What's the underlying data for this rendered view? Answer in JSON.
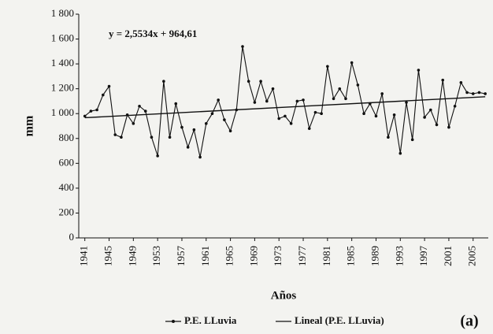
{
  "chart_data": {
    "type": "line",
    "annotation": "y = 2,5534x + 964,61",
    "x_label": "Años",
    "y_label": "mm",
    "panel_label": "(a)",
    "x": [
      1941,
      1942,
      1943,
      1944,
      1945,
      1946,
      1947,
      1948,
      1949,
      1950,
      1951,
      1952,
      1953,
      1954,
      1955,
      1956,
      1957,
      1958,
      1959,
      1960,
      1961,
      1962,
      1963,
      1964,
      1965,
      1966,
      1967,
      1968,
      1969,
      1970,
      1971,
      1972,
      1973,
      1974,
      1975,
      1976,
      1977,
      1978,
      1979,
      1980,
      1981,
      1982,
      1983,
      1984,
      1985,
      1986,
      1987,
      1988,
      1989,
      1990,
      1991,
      1992,
      1993,
      1994,
      1995,
      1996,
      1997,
      1998,
      1999,
      2000,
      2001,
      2002,
      2003,
      2004,
      2005,
      2006,
      2007
    ],
    "series": [
      {
        "name": "P.E. LLuvia",
        "color": "#111111",
        "values": [
          980,
          1020,
          1030,
          1150,
          1220,
          830,
          810,
          990,
          920,
          1060,
          1020,
          810,
          660,
          1260,
          810,
          1080,
          890,
          730,
          870,
          650,
          920,
          1000,
          1110,
          950,
          860,
          1030,
          1540,
          1260,
          1090,
          1260,
          1100,
          1200,
          960,
          980,
          920,
          1100,
          1110,
          880,
          1010,
          1000,
          1380,
          1120,
          1200,
          1120,
          1410,
          1230,
          1000,
          1080,
          980,
          1160,
          810,
          990,
          680,
          1090,
          790,
          1350,
          970,
          1030,
          910,
          1270,
          890,
          1060,
          1250,
          1170,
          1160,
          1170,
          1160
        ]
      },
      {
        "name": "Lineal (P.E. LLuvia)",
        "color": "#111111",
        "x": [
          1941,
          2007
        ],
        "values": [
          967,
          1136
        ]
      }
    ],
    "xlim": [
      1940,
      2007.5
    ],
    "xticks": [
      1941,
      1945,
      1949,
      1953,
      1957,
      1961,
      1965,
      1969,
      1973,
      1977,
      1981,
      1985,
      1989,
      1993,
      1997,
      2001,
      2005
    ],
    "ylim": [
      0,
      1800
    ],
    "yticks": [
      0,
      200,
      400,
      600,
      800,
      {
        "value": 1000,
        "label": "1 000"
      },
      {
        "value": 1200,
        "label": "1 200"
      },
      {
        "value": 1400,
        "label": "1 400"
      },
      {
        "value": 1600,
        "label": "1 600"
      },
      {
        "value": 1800,
        "label": "1 800"
      }
    ],
    "grid": false
  }
}
